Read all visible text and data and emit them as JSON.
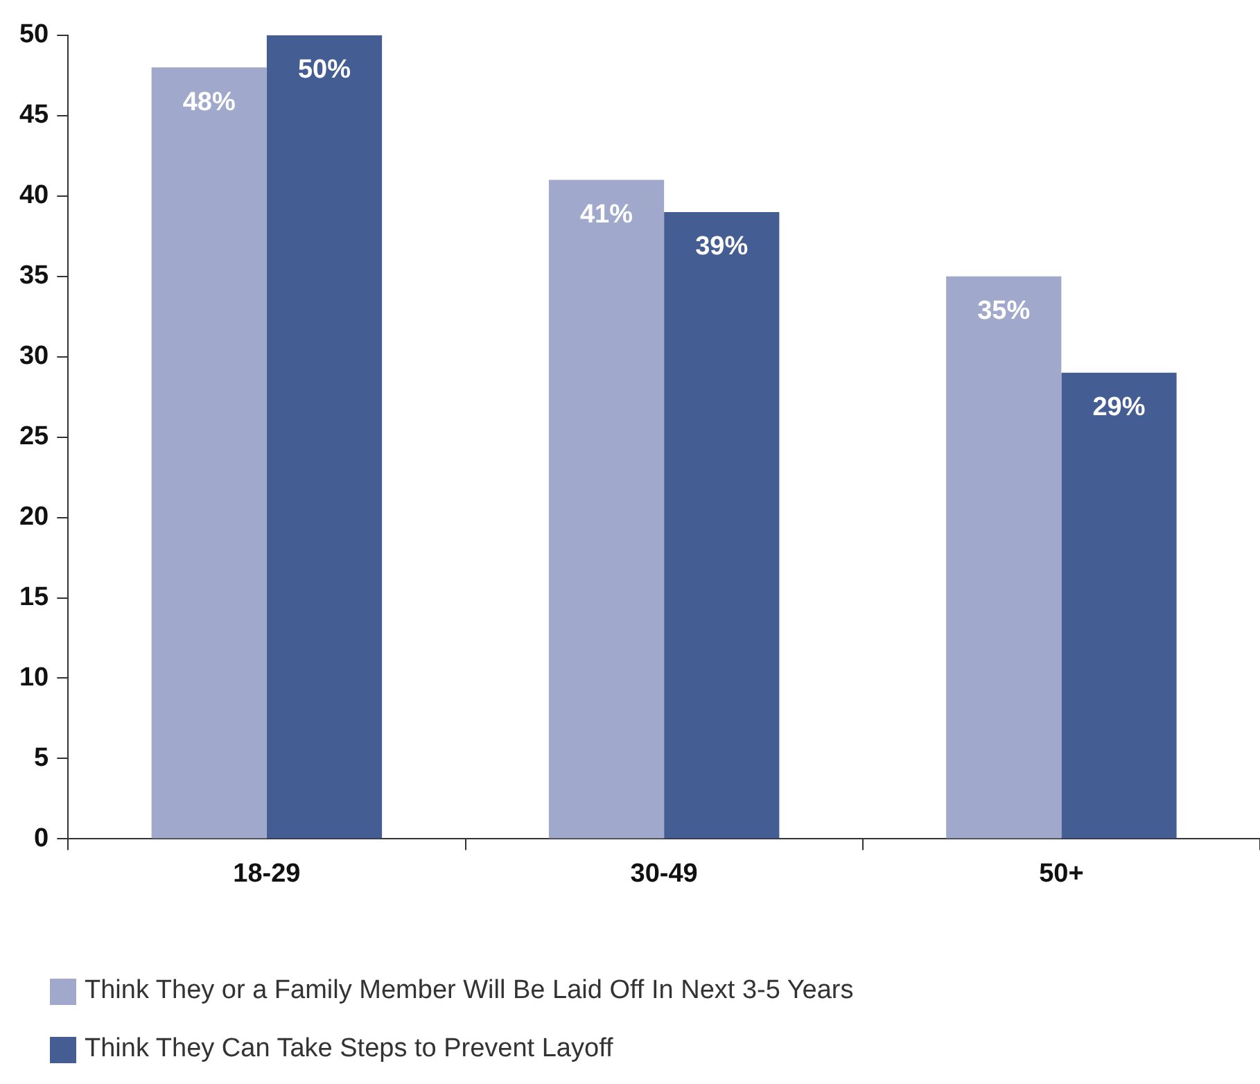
{
  "chart_data": {
    "type": "bar",
    "categories": [
      "18-29",
      "30-49",
      "50+"
    ],
    "series": [
      {
        "name": "Think They or a Family Member Will Be Laid Off In Next 3-5 Years",
        "color": "#a0a9cc",
        "values": [
          48,
          41,
          35
        ],
        "value_labels": [
          "48%",
          "41%",
          "35%"
        ]
      },
      {
        "name": "Think They Can Take Steps to Prevent Layoff",
        "color": "#445d93",
        "values": [
          50,
          39,
          29
        ],
        "value_labels": [
          "50%",
          "39%",
          "29%"
        ]
      }
    ],
    "ylim": [
      0,
      50
    ],
    "yticks": [
      0,
      5,
      10,
      15,
      20,
      25,
      30,
      35,
      40,
      45,
      50
    ],
    "grid": false,
    "legend": "bottom"
  }
}
